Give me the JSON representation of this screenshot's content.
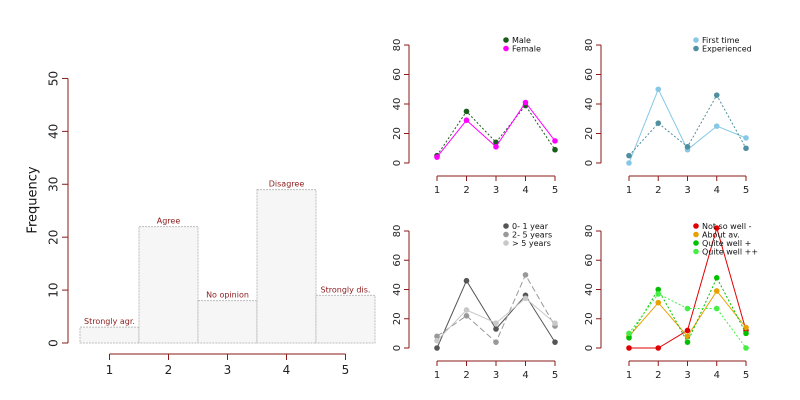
{
  "chart_data": [
    {
      "type": "bar",
      "ylabel": "Frequency",
      "ylim": [
        0,
        55
      ],
      "yticks": [
        0,
        10,
        20,
        30,
        40,
        50
      ],
      "categories": [
        "1",
        "2",
        "3",
        "4",
        "5"
      ],
      "values": [
        3,
        22,
        8,
        29,
        9
      ],
      "bar_labels": [
        "Strongly agr.",
        "Agree",
        "No opinion",
        "Disagree",
        "Strongly dis."
      ],
      "grid": false,
      "colors": {
        "bar_fill": "#f6f6f6",
        "bar_border": "#bdbdbd",
        "axis": "#8b1a1a",
        "label": "#8b1a1a"
      }
    },
    {
      "type": "line",
      "x": [
        1,
        2,
        3,
        4,
        5
      ],
      "ylim": [
        0,
        80
      ],
      "yticks": [
        0,
        20,
        40,
        60,
        80
      ],
      "legend_position": "top-right",
      "series": [
        {
          "name": "Male",
          "values": [
            5,
            35,
            14,
            39,
            9
          ],
          "color": "#1a5c1a",
          "line": "dotted"
        },
        {
          "name": "Female",
          "values": [
            4,
            29,
            11,
            41,
            15
          ],
          "color": "#ff00ff",
          "line": "solid"
        }
      ]
    },
    {
      "type": "line",
      "x": [
        1,
        2,
        3,
        4,
        5
      ],
      "ylim": [
        0,
        80
      ],
      "yticks": [
        0,
        20,
        40,
        60,
        80
      ],
      "legend_position": "top-right",
      "series": [
        {
          "name": "First time",
          "values": [
            0,
            50,
            9,
            25,
            17
          ],
          "color": "#87c8e6",
          "line": "solid"
        },
        {
          "name": "Experienced",
          "values": [
            5,
            27,
            11,
            46,
            10
          ],
          "color": "#4f8f9f",
          "line": "dotted"
        }
      ]
    },
    {
      "type": "line",
      "x": [
        1,
        2,
        3,
        4,
        5
      ],
      "ylim": [
        0,
        80
      ],
      "yticks": [
        0,
        20,
        40,
        60,
        80
      ],
      "legend_position": "top-right",
      "series": [
        {
          "name": "0- 1 year",
          "values": [
            0,
            46,
            13,
            36,
            4
          ],
          "color": "#555555",
          "line": "solid"
        },
        {
          "name": "2- 5 years",
          "values": [
            8,
            22,
            4,
            50,
            15
          ],
          "color": "#999999",
          "line": "dashed"
        },
        {
          "name": "> 5 years",
          "values": [
            5,
            26,
            17,
            34,
            17
          ],
          "color": "#c8c8c8",
          "line": "solid"
        }
      ]
    },
    {
      "type": "line",
      "x": [
        1,
        2,
        3,
        4,
        5
      ],
      "ylim": [
        0,
        80
      ],
      "yticks": [
        0,
        20,
        40,
        60,
        80
      ],
      "legend_position": "top-right",
      "series": [
        {
          "name": "Not so well -",
          "values": [
            0,
            0,
            12,
            82,
            12
          ],
          "color": "#e00000",
          "line": "solid"
        },
        {
          "name": "About av.",
          "values": [
            8,
            31,
            8,
            39,
            14
          ],
          "color": "#e8a000",
          "line": "solid"
        },
        {
          "name": "Quite well +",
          "values": [
            7,
            40,
            4,
            48,
            10
          ],
          "color": "#00c000",
          "line": "dotted"
        },
        {
          "name": "Quite well ++",
          "values": [
            10,
            37,
            27,
            27,
            0
          ],
          "color": "#44ee44",
          "line": "dotted"
        }
      ]
    }
  ]
}
